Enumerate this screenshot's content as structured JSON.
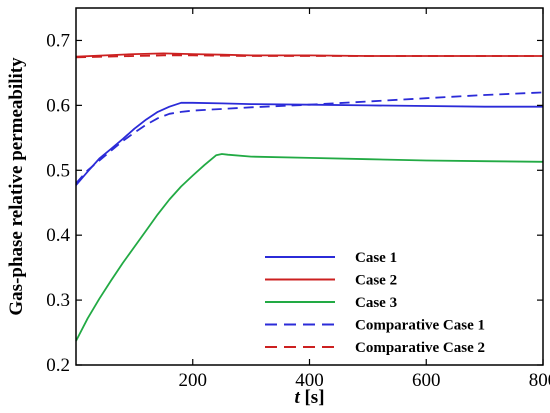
{
  "chart_data": {
    "type": "line",
    "xlabel_italic": "t",
    "xlabel_unit": " [s]",
    "ylabel": "Gas-phase relative permeability",
    "xlim": [
      0,
      800
    ],
    "ylim": [
      0.2,
      0.75
    ],
    "xticks": [
      200,
      400,
      600,
      800
    ],
    "yticks": [
      0.2,
      0.3,
      0.4,
      0.5,
      0.6,
      0.7
    ],
    "grid": false,
    "legend_position": "bottom-right",
    "series": [
      {
        "name": "Case 1",
        "color": "#2b2bd8",
        "dash": "solid",
        "x": [
          0,
          20,
          40,
          60,
          80,
          100,
          120,
          140,
          160,
          180,
          200,
          250,
          300,
          400,
          500,
          600,
          700,
          800
        ],
        "y": [
          0.477,
          0.498,
          0.518,
          0.533,
          0.548,
          0.564,
          0.578,
          0.59,
          0.598,
          0.604,
          0.604,
          0.603,
          0.602,
          0.601,
          0.6,
          0.599,
          0.598,
          0.598
        ]
      },
      {
        "name": "Case 2",
        "color": "#cc2020",
        "dash": "solid",
        "x": [
          0,
          50,
          100,
          150,
          200,
          250,
          300,
          400,
          500,
          600,
          700,
          800
        ],
        "y": [
          0.675,
          0.677,
          0.679,
          0.68,
          0.679,
          0.678,
          0.677,
          0.677,
          0.676,
          0.676,
          0.676,
          0.676
        ]
      },
      {
        "name": "Case 3",
        "color": "#22aa44",
        "dash": "solid",
        "x": [
          0,
          20,
          40,
          60,
          80,
          100,
          120,
          140,
          160,
          180,
          200,
          220,
          240,
          250,
          260,
          300,
          400,
          500,
          600,
          700,
          800
        ],
        "y": [
          0.237,
          0.272,
          0.302,
          0.33,
          0.357,
          0.382,
          0.407,
          0.432,
          0.455,
          0.475,
          0.492,
          0.508,
          0.523,
          0.525,
          0.524,
          0.521,
          0.519,
          0.517,
          0.515,
          0.514,
          0.513
        ]
      },
      {
        "name": "Comparative Case 1",
        "color": "#2b2bd8",
        "dash": "dashed",
        "x": [
          0,
          20,
          40,
          60,
          80,
          100,
          120,
          140,
          160,
          180,
          200,
          300,
          400,
          500,
          600,
          700,
          800
        ],
        "y": [
          0.48,
          0.5,
          0.515,
          0.53,
          0.545,
          0.558,
          0.57,
          0.58,
          0.587,
          0.59,
          0.592,
          0.597,
          0.601,
          0.606,
          0.611,
          0.616,
          0.62
        ]
      },
      {
        "name": "Comparative Case 2",
        "color": "#cc2020",
        "dash": "dashed",
        "x": [
          0,
          50,
          100,
          150,
          200,
          300,
          400,
          500,
          600,
          700,
          800
        ],
        "y": [
          0.674,
          0.675,
          0.676,
          0.677,
          0.677,
          0.676,
          0.676,
          0.676,
          0.676,
          0.676,
          0.676
        ]
      }
    ]
  }
}
